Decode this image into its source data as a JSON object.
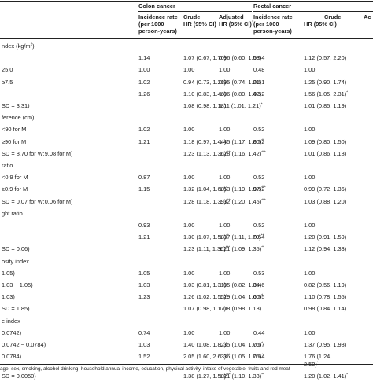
{
  "header": {
    "colon_group": "Colon cancer",
    "rectal_group": "Rectal cancer",
    "col_incidence": [
      "Incidence rate",
      "(per 1000",
      "person-years)"
    ],
    "col_crude": [
      "Crude",
      "HR (95% CI)"
    ],
    "col_adjusted": [
      "Adjusted",
      "HR (95% CI)"
    ],
    "adjusted_sup": "†",
    "col_rectal_incidence": [
      "Incidence rate",
      "(per 1000",
      "person-years)"
    ],
    "col_rectal_crude": [
      "Crude",
      "HR (95% CI)"
    ],
    "col_rectal_adjusted_partial": "Ac"
  },
  "rows": [
    {
      "label": "ndex (kg/m",
      "label_sup": "2",
      "label_tail": ")",
      "section": true
    },
    {
      "label": "",
      "c_inc": "1.14",
      "c_crude": "1.07 (0.67, 1.70)",
      "c_adj": "0.96 (0.60, 1.53)",
      "r_inc": "0.54",
      "r_crude": "1.12 (0.57, 2.20)"
    },
    {
      "label": "25.0",
      "c_inc": "1.00",
      "c_crude": "1.00",
      "c_adj": "1.00",
      "r_inc": "0.48",
      "r_crude": "1.00"
    },
    {
      "label": "≥7.5",
      "c_inc": "1.02",
      "c_crude": "0.94 (0.73, 1.21)",
      "c_adj": "0.95 (0.74, 1.21)",
      "r_inc": "0.51",
      "r_crude": "1.25 (0.90, 1.74)"
    },
    {
      "label": "",
      "c_inc": "1.26",
      "c_crude": "1.10 (0.83, 1.46)",
      "c_adj": "1.06 (0.80, 1.42)",
      "r_inc": "0.52",
      "r_crude": "1.56 (1.05, 2.31)",
      "r_crude_sup": "*"
    },
    {
      "label": "SD = 3.31)",
      "c_crude": "1.08 (0.98, 1.18)",
      "c_adj": "1.11 (1.01, 1.21)",
      "c_adj_sup": "*",
      "r_crude": "1.01 (0.85, 1.19)"
    },
    {
      "label": "ference (cm)",
      "section": true
    },
    {
      "label": "<90 for M",
      "c_inc": "1.02",
      "c_crude": "1.00",
      "c_adj": "1.00",
      "r_inc": "0.52",
      "r_crude": "1.00"
    },
    {
      "label": "≥90 for M",
      "c_inc": "1.21",
      "c_crude": "1.18 (0.97, 1.44)",
      "c_adj": "1.45 (1.17, 1.80)",
      "c_adj_sup": "**",
      "r_inc": "0.52",
      "r_crude": "1.09 (0.80, 1.50)"
    },
    {
      "label": "SD = 8.70 for W;9.08 for M)",
      "c_crude": "1.23 (1.13, 1.36)",
      "c_crude_sup": "***",
      "c_adj": "1.28 (1.16, 1.42)",
      "c_adj_sup": "***",
      "r_crude": "1.01 (0.86, 1.18)"
    },
    {
      "label": "ratio",
      "section": true
    },
    {
      "label": "<0.9 for M",
      "c_inc": "0.87",
      "c_crude": "1.00",
      "c_adj": "1.00",
      "r_inc": "0.52",
      "r_crude": "1.00"
    },
    {
      "label": "≥0.9 for M",
      "c_inc": "1.15",
      "c_crude": "1.32 (1.04, 1.68)",
      "c_crude_sup": "*",
      "c_adj": "1.53 (1.19, 1.97)",
      "c_adj_sup": "***",
      "r_inc": "0.52",
      "r_crude": "0.99 (0.72, 1.36)"
    },
    {
      "label": "SD = 0.07 for W;0.06 for M)",
      "c_crude": "1.28 (1.18, 1.39)",
      "c_crude_sup": "***",
      "c_adj": "1.32 (1.20, 1.45)",
      "c_adj_sup": "***",
      "r_crude": "1.03 (0.88, 1.20)"
    },
    {
      "label": "ght ratio",
      "section": true
    },
    {
      "label": "",
      "c_inc": "0.93",
      "c_crude": "1.00",
      "c_adj": "1.00",
      "r_inc": "0.52",
      "r_crude": "1.00"
    },
    {
      "label": "",
      "c_inc": "1.21",
      "c_crude": "1.30 (1.07, 1.58)",
      "c_crude_sup": "**",
      "c_adj": "1.37 (1.11, 1.70)",
      "c_adj_sup": "**",
      "r_inc": "0.54",
      "r_crude": "1.20 (0.91, 1.59)"
    },
    {
      "label": "SD = 0.06)",
      "c_crude": "1.23 (1.11, 1.36)",
      "c_crude_sup": "***",
      "c_adj": "1.21 (1.09, 1.35)",
      "c_adj_sup": "**",
      "r_crude": "1.12 (0.94, 1.33)"
    },
    {
      "label": "osity index",
      "section": true
    },
    {
      "label": "1.05)",
      "c_inc": "1.05",
      "c_crude": "1.00",
      "c_adj": "1.00",
      "r_inc": "0.53",
      "r_crude": "1.00"
    },
    {
      "label": "1.03 ~ 1.05)",
      "c_inc": "1.03",
      "c_crude": "1.03 (0.81, 1.31)",
      "c_adj": "1.05 (0.82, 1.34)",
      "r_inc": "0.46",
      "r_crude": "0.82 (0.56, 1.19)"
    },
    {
      "label": "1.03)",
      "c_inc": "1.23",
      "c_crude": "1.26 (1.02, 1.55)",
      "c_crude_sup": "*",
      "c_adj": "1.29 (1.04, 1.60)",
      "c_adj_sup": "*",
      "r_inc": "0.55",
      "r_crude": "1.10 (0.78, 1.55)"
    },
    {
      "label": "SD = 1.85)",
      "c_crude": "1.07 (0.98, 1.17)",
      "c_adj": "1.08 (0.98, 1.18)",
      "r_crude": "0.98 (0.84, 1.14)"
    },
    {
      "label": "e index",
      "section": true
    },
    {
      "label": "0.0742)",
      "c_inc": "0.74",
      "c_crude": "1.00",
      "c_adj": "1.00",
      "r_inc": "0.44",
      "r_crude": "1.00"
    },
    {
      "label": "0.0742 ~ 0.0784)",
      "c_inc": "1.03",
      "c_crude": "1.40 (1.08, 1.82)",
      "c_crude_sup": "*",
      "c_adj": "1.35 (1.04, 1.76)",
      "c_adj_sup": "*",
      "r_inc": "0.57",
      "r_crude": "1.37 (0.95, 1.98)"
    },
    {
      "label": "0.0784)",
      "c_inc": "1.52",
      "c_crude": "2.05 (1.60, 2.63)",
      "c_crude_sup": "***",
      "c_adj": "1.36 (1.05, 1.76)",
      "c_adj_sup": "*",
      "r_inc": "0.64",
      "r_crude": "1.76 (1.24,",
      "r_crude_line2": "2.50)",
      "r_crude_sup2": "**",
      "wrap": true
    },
    {
      "label": "SD = 0.0050)",
      "c_crude": "1.38 (1.27, 1.50)",
      "c_crude_sup": "***",
      "c_adj": "1.21 (1.10, 1.33)",
      "c_adj_sup": "**",
      "r_crude": "1.20 (1.02, 1.41)",
      "r_crude_sup": "*"
    }
  ],
  "footnote": "age, sex, smoking, alcohol drinking, household annual income, education, physical activity, intake of vegetable, fruits and red meat"
}
